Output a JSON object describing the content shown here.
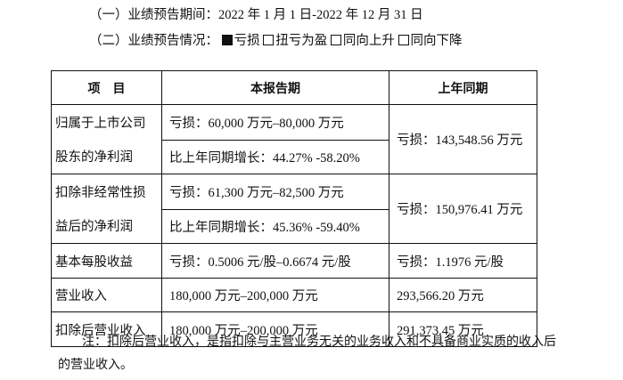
{
  "period_line": "（一）业绩预告期间：2022 年 1 月 1 日-2022 年 12 月 31 日",
  "status_line": {
    "prefix": "（二）业绩预告情况：",
    "options": [
      {
        "label": "亏损",
        "checked": true
      },
      {
        "label": "扭亏为盈",
        "checked": false
      },
      {
        "label": "同向上升",
        "checked": false
      },
      {
        "label": "同向下降",
        "checked": false
      }
    ]
  },
  "table": {
    "headers": [
      "项　目",
      "本报告期",
      "上年同期"
    ],
    "rows": [
      {
        "item_lines": [
          "归属于上市公司",
          "股东的净利润"
        ],
        "current": [
          "亏损：60,000 万元–80,000 万元",
          "比上年同期增长：44.27% -58.20%"
        ],
        "prior": "亏损：143,548.56 万元"
      },
      {
        "item_lines": [
          "扣除非经常性损",
          "益后的净利润"
        ],
        "current": [
          "亏损：61,300 万元–82,500 万元",
          "比上年同期增长：45.36% -59.40%"
        ],
        "prior": "亏损：150,976.41 万元"
      },
      {
        "item": "基本每股收益",
        "current": "亏损：0.5006 元/股–0.6674 元/股",
        "prior": "亏损：1.1976 元/股"
      },
      {
        "item": "营业收入",
        "current": "180,000 万元–200,000 万元",
        "prior": "293,566.20 万元"
      },
      {
        "item": "扣除后营业收入",
        "current": "180,000 万元–200,000 万元",
        "prior": "291,373.45 万元"
      }
    ]
  },
  "note_lines": [
    "注：扣除后营业收入，是指扣除与主营业务无关的业务收入和不具备商业实质的收入后",
    "的营业收入。"
  ]
}
